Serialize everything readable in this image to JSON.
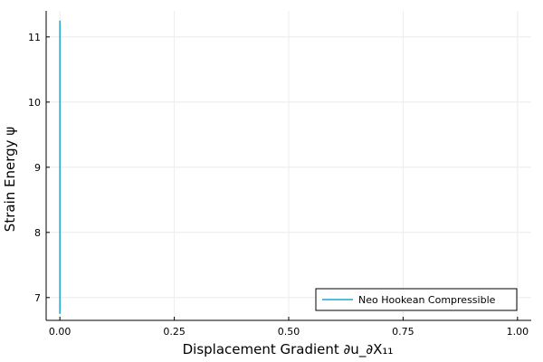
{
  "chart_data": {
    "type": "line",
    "xlabel": "Displacement Gradient ∂u_∂X₁₁",
    "ylabel": "Strain Energy ψ",
    "xlim": [
      -0.03,
      1.03
    ],
    "ylim": [
      6.65,
      11.4
    ],
    "xticks": [
      0.0,
      0.25,
      0.5,
      0.75,
      1.0
    ],
    "xtick_labels": [
      "0.00",
      "0.25",
      "0.50",
      "0.75",
      "1.00"
    ],
    "yticks": [
      7,
      8,
      9,
      10,
      11
    ],
    "ytick_labels": [
      "7",
      "8",
      "9",
      "10",
      "11"
    ],
    "grid": true,
    "legend_position": "bottom-right",
    "series": [
      {
        "name": "Neo Hookean Compressible",
        "color": "#1aa5cf",
        "x": [
          0.0,
          0.0
        ],
        "y": [
          6.75,
          11.25
        ]
      }
    ]
  }
}
